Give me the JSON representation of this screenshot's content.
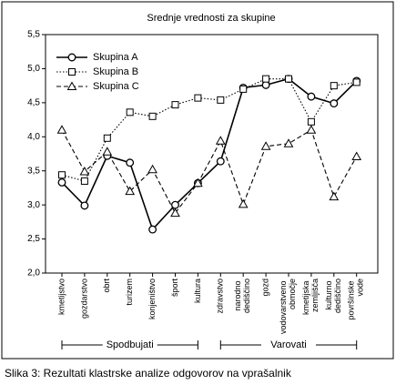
{
  "chart_data": {
    "type": "line",
    "title": "Srednje vrednosti za skupine",
    "categories": [
      "kmetijstvo",
      "gozdarstvo",
      "obrt",
      "turizem",
      "konjeništvo",
      "šport",
      "kultura",
      "zdravstvo",
      "narodno dediščino",
      "gozd",
      "vodovarstveno območje",
      "kmetijska zemljišča",
      "kulturno dediščino",
      "površinske vode"
    ],
    "series": [
      {
        "name": "Skupina A",
        "color": "#000000",
        "dash": "solid",
        "marker": "circle",
        "values": [
          3.33,
          2.99,
          3.72,
          3.62,
          2.64,
          3.0,
          3.32,
          3.64,
          4.72,
          4.76,
          4.85,
          4.59,
          4.49,
          4.82
        ]
      },
      {
        "name": "Skupina B",
        "color": "#000000",
        "dash": "dotted",
        "marker": "square",
        "values": [
          3.44,
          3.35,
          3.98,
          4.36,
          4.3,
          4.47,
          4.57,
          4.54,
          4.7,
          4.85,
          4.85,
          4.22,
          4.75,
          4.8
        ]
      },
      {
        "name": "Skupina C",
        "color": "#000000",
        "dash": "dashed",
        "marker": "triangle",
        "values": [
          4.1,
          3.49,
          3.78,
          3.2,
          3.52,
          2.88,
          3.32,
          3.94,
          3.01,
          3.86,
          3.9,
          4.1,
          3.12,
          3.71
        ]
      }
    ],
    "ylim": [
      2,
      5.5
    ],
    "yticks": [
      {
        "value": 2,
        "label": "2,0"
      },
      {
        "value": 2.5,
        "label": "2,5"
      },
      {
        "value": 3,
        "label": "3,0"
      },
      {
        "value": 3.5,
        "label": "3,5"
      },
      {
        "value": 4,
        "label": "4,0"
      },
      {
        "value": 4.5,
        "label": "4,5"
      },
      {
        "value": 5,
        "label": "5,0"
      },
      {
        "value": 5.5,
        "label": "5,5"
      }
    ],
    "grid": false,
    "legend": "upper left",
    "group_labels": [
      "Spodbujati",
      "Varovati"
    ],
    "caption": "Slika 3:  Rezultati klastrske analize odgovorov na vprašalnik"
  }
}
